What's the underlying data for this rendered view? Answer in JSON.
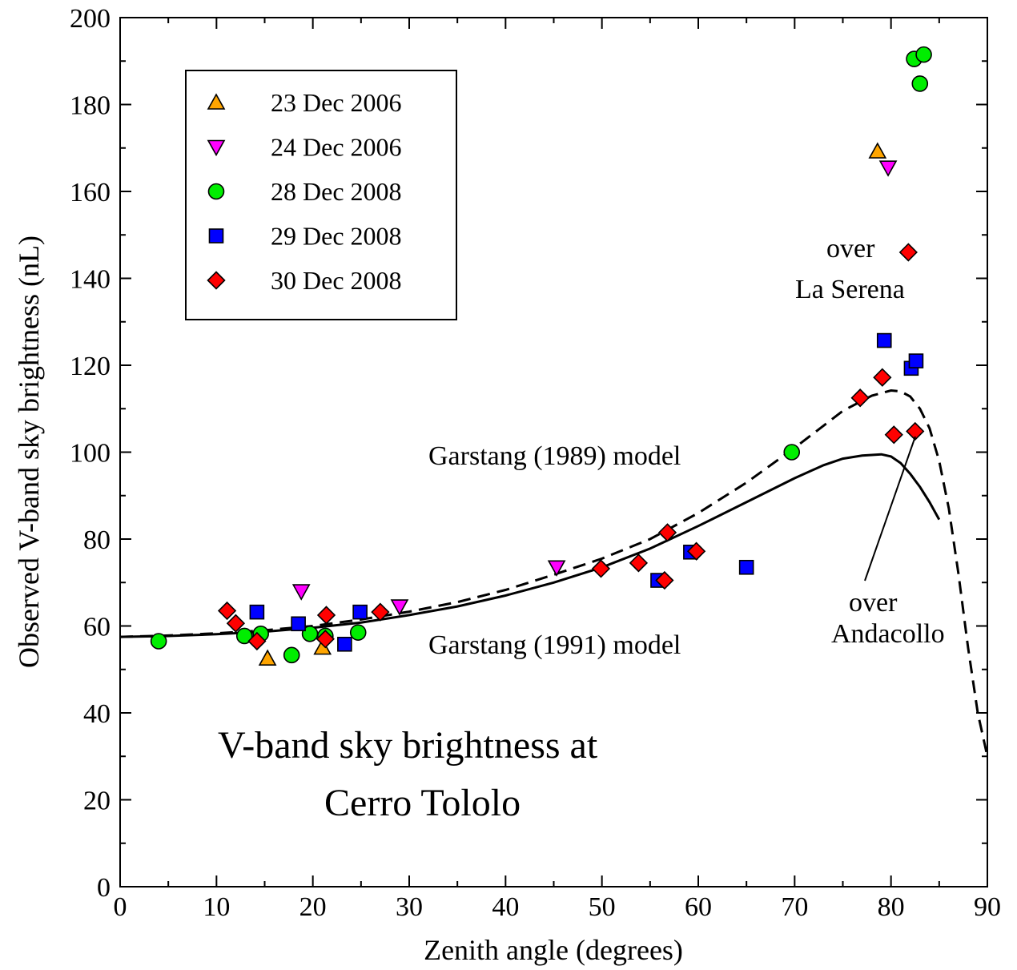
{
  "chart_data": {
    "type": "scatter",
    "title": "",
    "xlabel": "Zenith angle (degrees)",
    "ylabel": "Observed V-band sky brightness (nL)",
    "xlim": [
      0,
      90
    ],
    "ylim": [
      0,
      200
    ],
    "x_ticks": [
      "0",
      "10",
      "20",
      "30",
      "40",
      "50",
      "60",
      "70",
      "80",
      "90"
    ],
    "y_ticks": [
      "0",
      "20",
      "40",
      "60",
      "80",
      "100",
      "120",
      "140",
      "160",
      "180",
      "200"
    ],
    "grid": false,
    "legend_position": "top-left",
    "series": [
      {
        "name": "23 Dec 2006",
        "marker": "triangle-up",
        "color": "#ffa500",
        "points": [
          [
            15.3,
            52.5
          ],
          [
            21.0,
            55.0
          ],
          [
            78.6,
            169.2
          ]
        ]
      },
      {
        "name": "24 Dec 2006",
        "marker": "triangle-down",
        "color": "#ff00ff",
        "points": [
          [
            18.8,
            68.0
          ],
          [
            29.0,
            64.5
          ],
          [
            45.3,
            73.5
          ],
          [
            79.7,
            165.5
          ]
        ]
      },
      {
        "name": "28 Dec 2008",
        "marker": "circle",
        "color": "#00ee00",
        "points": [
          [
            4.0,
            56.5
          ],
          [
            12.9,
            57.7
          ],
          [
            14.6,
            58.2
          ],
          [
            17.8,
            53.3
          ],
          [
            19.7,
            58.2
          ],
          [
            21.3,
            57.7
          ],
          [
            24.7,
            58.5
          ],
          [
            69.7,
            100.0
          ],
          [
            82.4,
            190.5
          ],
          [
            83.4,
            191.5
          ],
          [
            83.0,
            184.8
          ]
        ]
      },
      {
        "name": "29 Dec 2008",
        "marker": "square",
        "color": "#0000ff",
        "points": [
          [
            14.2,
            63.2
          ],
          [
            18.5,
            60.5
          ],
          [
            23.3,
            55.8
          ],
          [
            24.9,
            63.2
          ],
          [
            55.8,
            70.5
          ],
          [
            59.2,
            77.0
          ],
          [
            65.0,
            73.5
          ],
          [
            79.3,
            125.7
          ],
          [
            82.1,
            119.3
          ],
          [
            82.6,
            121.0
          ]
        ]
      },
      {
        "name": "30 Dec 2008",
        "marker": "diamond",
        "color": "#ff0000",
        "points": [
          [
            11.1,
            63.5
          ],
          [
            12.0,
            60.6
          ],
          [
            14.2,
            56.5
          ],
          [
            21.3,
            57.0
          ],
          [
            21.4,
            62.5
          ],
          [
            27.0,
            63.2
          ],
          [
            49.9,
            73.2
          ],
          [
            53.8,
            74.5
          ],
          [
            56.5,
            70.5
          ],
          [
            56.8,
            81.5
          ],
          [
            59.8,
            77.2
          ],
          [
            76.8,
            112.5
          ],
          [
            79.1,
            117.2
          ],
          [
            80.3,
            104.0
          ],
          [
            82.5,
            104.8
          ],
          [
            81.8,
            146.0
          ]
        ]
      }
    ],
    "models": [
      {
        "label": "Garstang (1989) model",
        "style": "dashed",
        "x": [
          0,
          5,
          10,
          15,
          20,
          25,
          30,
          35,
          40,
          45,
          50,
          55,
          60,
          65,
          70,
          75,
          78,
          80,
          81,
          82,
          83,
          84,
          85,
          86,
          87,
          88,
          89,
          90
        ],
        "y": [
          57.5,
          57.8,
          58.3,
          59.0,
          60.0,
          61.5,
          63.3,
          65.5,
          68.3,
          71.8,
          75.5,
          80.0,
          86.0,
          93.0,
          101.0,
          109.5,
          113.0,
          114.2,
          114.0,
          112.8,
          110.0,
          105.5,
          98.0,
          87.0,
          72.0,
          55.0,
          40.0,
          30.0
        ]
      },
      {
        "label": "Garstang (1991) model",
        "style": "solid",
        "x": [
          0,
          5,
          10,
          15,
          20,
          25,
          30,
          35,
          40,
          45,
          50,
          55,
          60,
          65,
          70,
          73,
          75,
          77,
          79,
          80,
          81,
          82,
          83,
          84,
          85
        ],
        "y": [
          57.5,
          57.7,
          58.1,
          58.7,
          59.6,
          60.8,
          62.5,
          64.5,
          67.0,
          70.0,
          73.5,
          77.8,
          83.0,
          88.5,
          94.0,
          97.0,
          98.5,
          99.2,
          99.5,
          99.0,
          97.5,
          95.0,
          92.0,
          88.5,
          84.5
        ]
      }
    ],
    "annotations": {
      "over_la_serena": [
        "over",
        "La Serena"
      ],
      "over_andacollo": [
        "over",
        "Andacollo"
      ],
      "title_lines": [
        "V-band sky brightness at",
        "Cerro Tololo"
      ]
    }
  }
}
